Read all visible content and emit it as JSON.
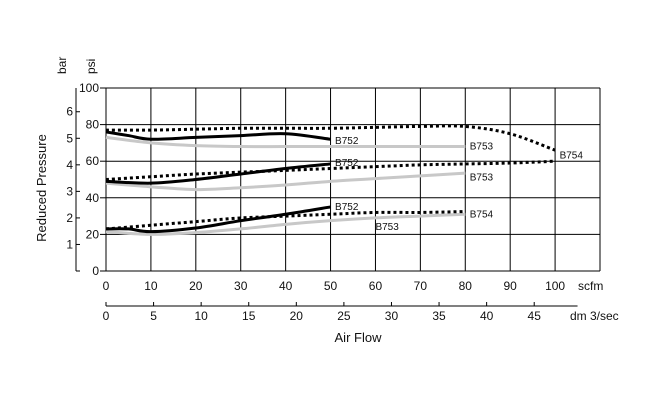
{
  "chart_data": {
    "type": "line",
    "xlabel": "Air Flow",
    "ylabel": "Reduced Pressure",
    "x_units": {
      "primary": "scfm",
      "secondary": "dm 3/sec"
    },
    "y_units": {
      "bar": "bar",
      "psi": "psi"
    },
    "xlim": [
      0,
      110
    ],
    "ylim_psi": [
      0,
      100
    ],
    "x_ticks_scfm": [
      "0",
      "10",
      "20",
      "30",
      "40",
      "50",
      "60",
      "70",
      "80",
      "90",
      "100"
    ],
    "x_ticks_dm3": [
      "0",
      "5",
      "10",
      "15",
      "20",
      "25",
      "30",
      "35",
      "40",
      "45"
    ],
    "y_ticks_psi": [
      "0",
      "20",
      "40",
      "60",
      "80",
      "100"
    ],
    "y_ticks_bar": [
      "1",
      "2",
      "3",
      "4",
      "5",
      "6"
    ],
    "grid": true,
    "colors": {
      "B752": "#000000",
      "B753": "#c8c8c8",
      "B754": "#000000"
    },
    "series": [
      {
        "name": "B752",
        "style": "solid-black",
        "label_at": [
          51,
          71
        ],
        "points": [
          [
            0,
            76
          ],
          [
            5,
            74
          ],
          [
            10,
            72
          ],
          [
            20,
            73
          ],
          [
            30,
            74
          ],
          [
            40,
            75
          ],
          [
            50,
            72
          ]
        ]
      },
      {
        "name": "B753",
        "style": "solid-gray",
        "label_at": [
          81,
          68
        ],
        "points": [
          [
            0,
            73
          ],
          [
            10,
            70
          ],
          [
            20,
            68.5
          ],
          [
            30,
            68
          ],
          [
            40,
            68
          ],
          [
            50,
            68
          ],
          [
            60,
            68
          ],
          [
            70,
            68
          ],
          [
            80,
            68
          ]
        ]
      },
      {
        "name": "B754",
        "style": "dotted-black",
        "label_at": [
          101,
          63
        ],
        "points": [
          [
            0,
            77
          ],
          [
            10,
            77
          ],
          [
            20,
            77.5
          ],
          [
            30,
            78
          ],
          [
            40,
            78
          ],
          [
            50,
            78
          ],
          [
            60,
            78.5
          ],
          [
            70,
            79
          ],
          [
            80,
            79
          ],
          [
            90,
            75
          ],
          [
            100,
            66
          ]
        ]
      },
      {
        "name": "B752",
        "style": "solid-black",
        "label_at": [
          51,
          59
        ],
        "points": [
          [
            0,
            49
          ],
          [
            10,
            48
          ],
          [
            20,
            50
          ],
          [
            30,
            53
          ],
          [
            40,
            56
          ],
          [
            50,
            58.5
          ]
        ]
      },
      {
        "name": "B753",
        "style": "solid-gray",
        "label_at": [
          81,
          51
        ],
        "points": [
          [
            0,
            48
          ],
          [
            10,
            46
          ],
          [
            20,
            44.5
          ],
          [
            30,
            45.5
          ],
          [
            40,
            47
          ],
          [
            50,
            49
          ],
          [
            60,
            50.5
          ],
          [
            70,
            52
          ],
          [
            80,
            53.5
          ]
        ]
      },
      {
        "name": "B754",
        "style": "dotted-black",
        "points": [
          [
            0,
            50
          ],
          [
            10,
            51.5
          ],
          [
            20,
            53
          ],
          [
            30,
            54
          ],
          [
            40,
            55
          ],
          [
            50,
            56
          ],
          [
            60,
            57
          ],
          [
            70,
            58
          ],
          [
            80,
            58.5
          ],
          [
            90,
            59
          ],
          [
            100,
            60
          ]
        ]
      },
      {
        "name": "B752",
        "style": "solid-black",
        "label_at": [
          51,
          35
        ],
        "points": [
          [
            0,
            23
          ],
          [
            5,
            23
          ],
          [
            10,
            21.5
          ],
          [
            20,
            23.5
          ],
          [
            30,
            27.5
          ],
          [
            40,
            31
          ],
          [
            50,
            35
          ]
        ]
      },
      {
        "name": "B753",
        "style": "solid-gray",
        "label_at": [
          60,
          24
        ],
        "points": [
          [
            0,
            21.5
          ],
          [
            10,
            20
          ],
          [
            20,
            21
          ],
          [
            30,
            23
          ],
          [
            40,
            25.5
          ],
          [
            50,
            27.5
          ],
          [
            60,
            29
          ],
          [
            70,
            30
          ],
          [
            80,
            31
          ]
        ]
      },
      {
        "name": "B754",
        "style": "dotted-black",
        "label_at": [
          81,
          31
        ],
        "points": [
          [
            0,
            23
          ],
          [
            10,
            25
          ],
          [
            20,
            27
          ],
          [
            30,
            29
          ],
          [
            40,
            30
          ],
          [
            50,
            31
          ],
          [
            60,
            32
          ],
          [
            70,
            32
          ],
          [
            80,
            32.5
          ]
        ]
      }
    ]
  }
}
